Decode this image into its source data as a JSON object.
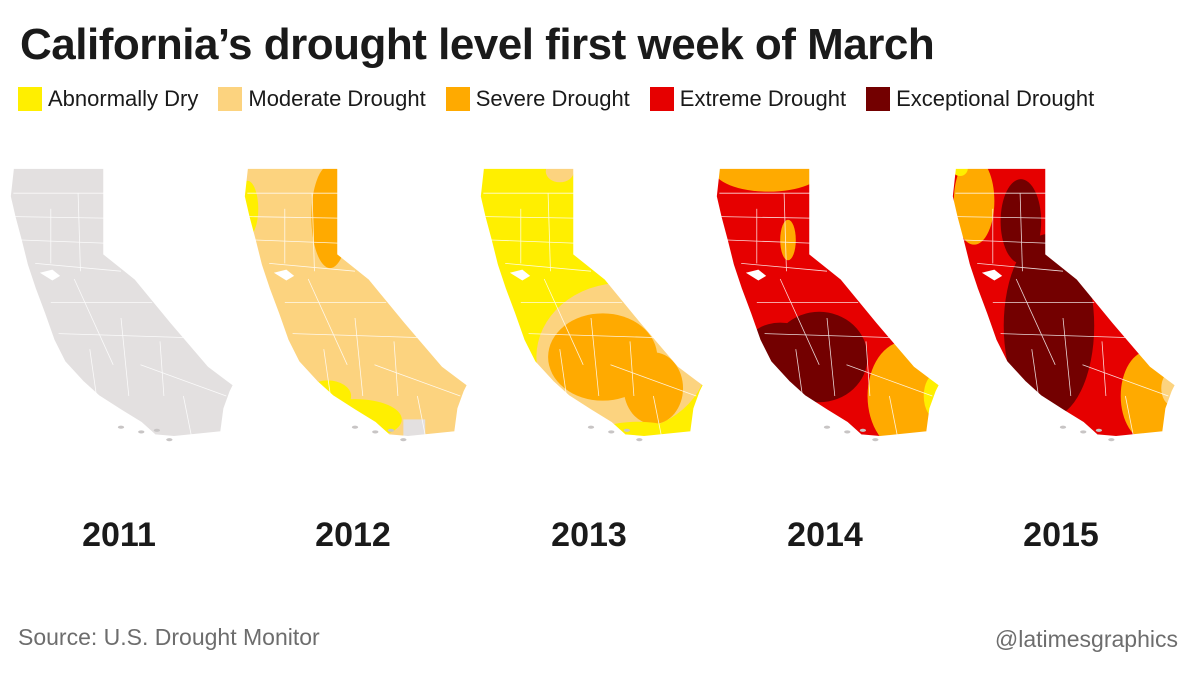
{
  "title": "California’s drought level first week of March",
  "legend": [
    {
      "label": "Abnormally Dry",
      "color": "#ffef00"
    },
    {
      "label": "Moderate Drought",
      "color": "#fcd37f"
    },
    {
      "label": "Severe Drought",
      "color": "#ffaa00"
    },
    {
      "label": "Extreme Drought",
      "color": "#e60000"
    },
    {
      "label": "Exceptional Drought",
      "color": "#730000"
    }
  ],
  "base_color": "#e3e0e0",
  "maps": [
    {
      "year": "2011",
      "dominant": "none"
    },
    {
      "year": "2012",
      "dominant": "Moderate Drought"
    },
    {
      "year": "2013",
      "dominant": "Abnormally Dry"
    },
    {
      "year": "2014",
      "dominant": "Extreme Drought"
    },
    {
      "year": "2015",
      "dominant": "Exceptional Drought"
    }
  ],
  "source": "Source: U.S. Drought Monitor",
  "credit": "@latimesgraphics"
}
